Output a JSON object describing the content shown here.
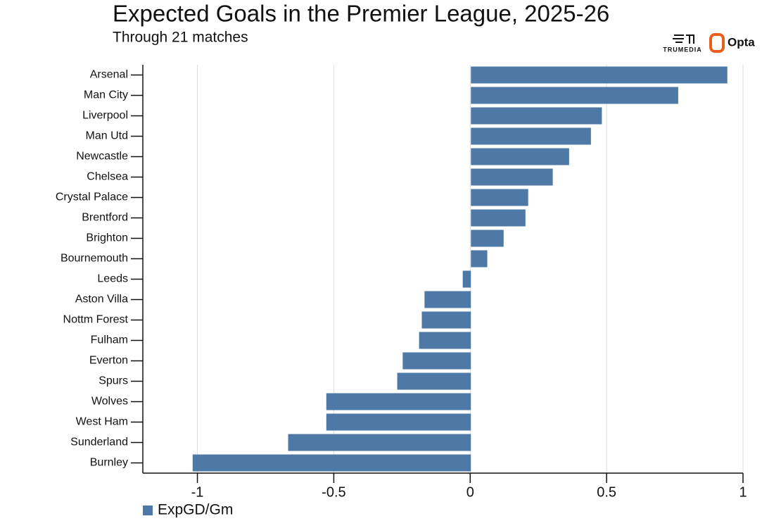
{
  "chart_data": {
    "type": "bar",
    "orientation": "horizontal",
    "title": "Expected Goals in the Premier League, 2025-26",
    "subtitle": "Through 21 matches",
    "logos": [
      "TRUMEDIA",
      "Opta"
    ],
    "categories": [
      "Arsenal",
      "Man City",
      "Liverpool",
      "Man Utd",
      "Newcastle",
      "Chelsea",
      "Crystal Palace",
      "Brentford",
      "Brighton",
      "Bournemouth",
      "Leeds",
      "Aston Villa",
      "Nottm Forest",
      "Fulham",
      "Everton",
      "Spurs",
      "Wolves",
      "West Ham",
      "Sunderland",
      "Burnley"
    ],
    "series": [
      {
        "name": "ExpGD/Gm",
        "color": "#4e79a7",
        "values": [
          0.94,
          0.76,
          0.48,
          0.44,
          0.36,
          0.3,
          0.21,
          0.2,
          0.12,
          0.06,
          -0.03,
          -0.17,
          -0.18,
          -0.19,
          -0.25,
          -0.27,
          -0.53,
          -0.53,
          -0.67,
          -1.02
        ]
      }
    ],
    "xlim": [
      -1.2,
      1
    ],
    "xticks": [
      -1,
      -0.5,
      0,
      0.5,
      1
    ],
    "grid": true,
    "legend": "bottom-left"
  }
}
